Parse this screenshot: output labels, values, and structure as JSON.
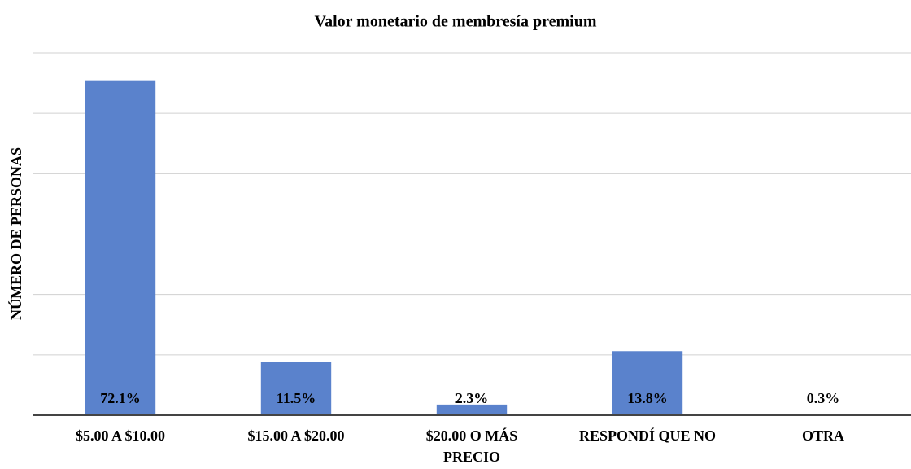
{
  "chart_data": {
    "type": "bar",
    "title": "Valor monetario de membresía premium",
    "y_label": "NÚMERO DE PERSONAS",
    "categories": [
      "$5.00 A $10.00",
      "$15.00 A $20.00",
      "$20.00 O MÁS\nPRECIO",
      "RESPONDÍ QUE NO",
      "OTRA"
    ],
    "values": [
      72.1,
      11.5,
      2.3,
      13.8,
      0.3
    ],
    "value_labels": [
      "72.1%",
      "11.5%",
      "2.3%",
      "13.8%",
      "0.3%"
    ],
    "color": "#5a82cc",
    "ylim": [
      0,
      78
    ],
    "yticks": [
      0,
      13,
      26,
      39,
      52,
      65,
      78
    ],
    "grid": true
  }
}
